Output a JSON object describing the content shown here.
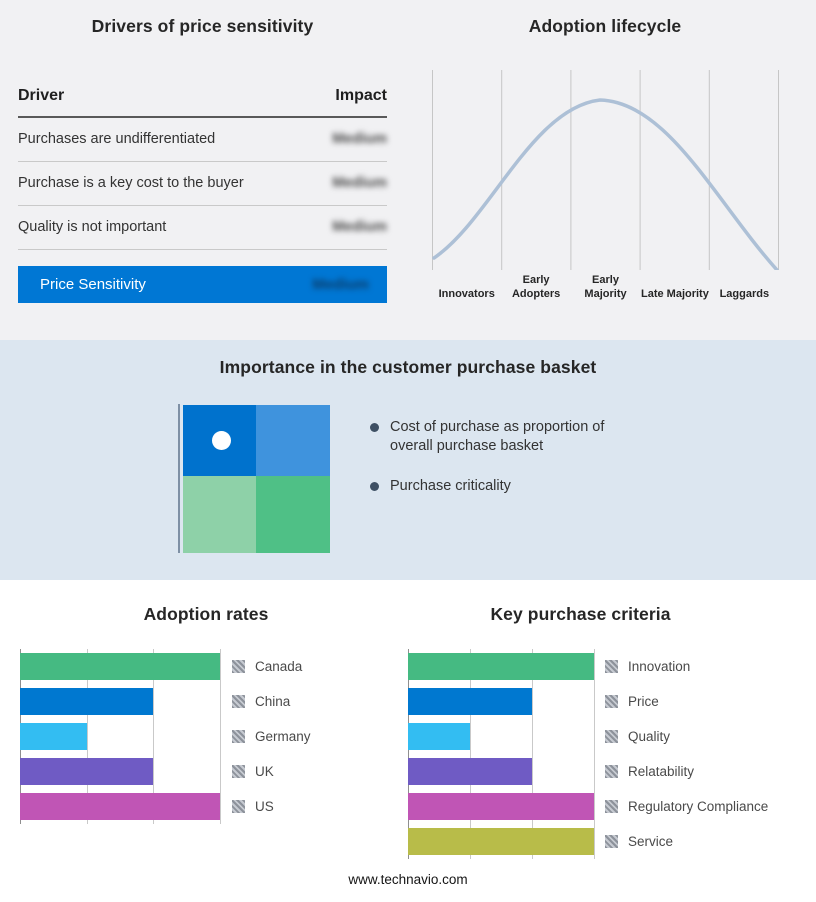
{
  "page": {
    "footer": "www.technavio.com"
  },
  "drivers": {
    "title": "Drivers of price sensitivity",
    "columns": [
      "Driver",
      "Impact"
    ],
    "rows": [
      {
        "driver": "Purchases are undifferentiated",
        "impact": "Medium"
      },
      {
        "driver": "Purchase is a key cost to the buyer",
        "impact": "Medium"
      },
      {
        "driver": "Quality is not important",
        "impact": "Medium"
      }
    ],
    "impact_values_blurred": true,
    "highlight": {
      "label": "Price Sensitivity",
      "impact": "Medium"
    },
    "highlight_color": "#0077d4"
  },
  "basket": {
    "title": "Importance in the customer purchase basket",
    "bullets": [
      "Cost of purchase as proportion of overall purchase basket",
      "Purchase criticality"
    ],
    "quadrant_colors": [
      "#0072cd",
      "#3f93dd",
      "#8ed1a8",
      "#4fc086"
    ],
    "band_color": "#dce6f0"
  },
  "chart_data": [
    {
      "id": "adoption_lifecycle",
      "type": "line",
      "title": "Adoption lifecycle",
      "shape": "bell-curve",
      "categories": [
        "Innovators",
        "Early Adopters",
        "Early Majority",
        "Late Majority",
        "Laggards"
      ],
      "peak_category": "Early Majority",
      "line_color": "#adc0d6",
      "grid": "vertical-only"
    },
    {
      "id": "adoption_rates",
      "type": "bar",
      "title": "Adoption rates",
      "orientation": "horizontal",
      "categories": [
        "Canada",
        "China",
        "Germany",
        "UK",
        "US"
      ],
      "values": [
        100,
        66.7,
        33.3,
        66.7,
        100
      ],
      "xlim": [
        0,
        100
      ],
      "gridlines": 4,
      "legend_position": "right",
      "bar_colors": [
        "#45ba82",
        "#0078d0",
        "#33bdf2",
        "#6f5bc4",
        "#c055b5"
      ]
    },
    {
      "id": "key_purchase_criteria",
      "type": "bar",
      "title": "Key purchase criteria",
      "orientation": "horizontal",
      "categories": [
        "Innovation",
        "Price",
        "Quality",
        "Relatability",
        "Regulatory Compliance",
        "Service"
      ],
      "values": [
        100,
        66.7,
        33.3,
        66.7,
        100,
        100
      ],
      "xlim": [
        0,
        100
      ],
      "gridlines": 4,
      "legend_position": "right",
      "bar_colors": [
        "#45ba82",
        "#0078d0",
        "#33bdf2",
        "#6f5bc4",
        "#c055b5",
        "#b8bc49"
      ]
    }
  ]
}
